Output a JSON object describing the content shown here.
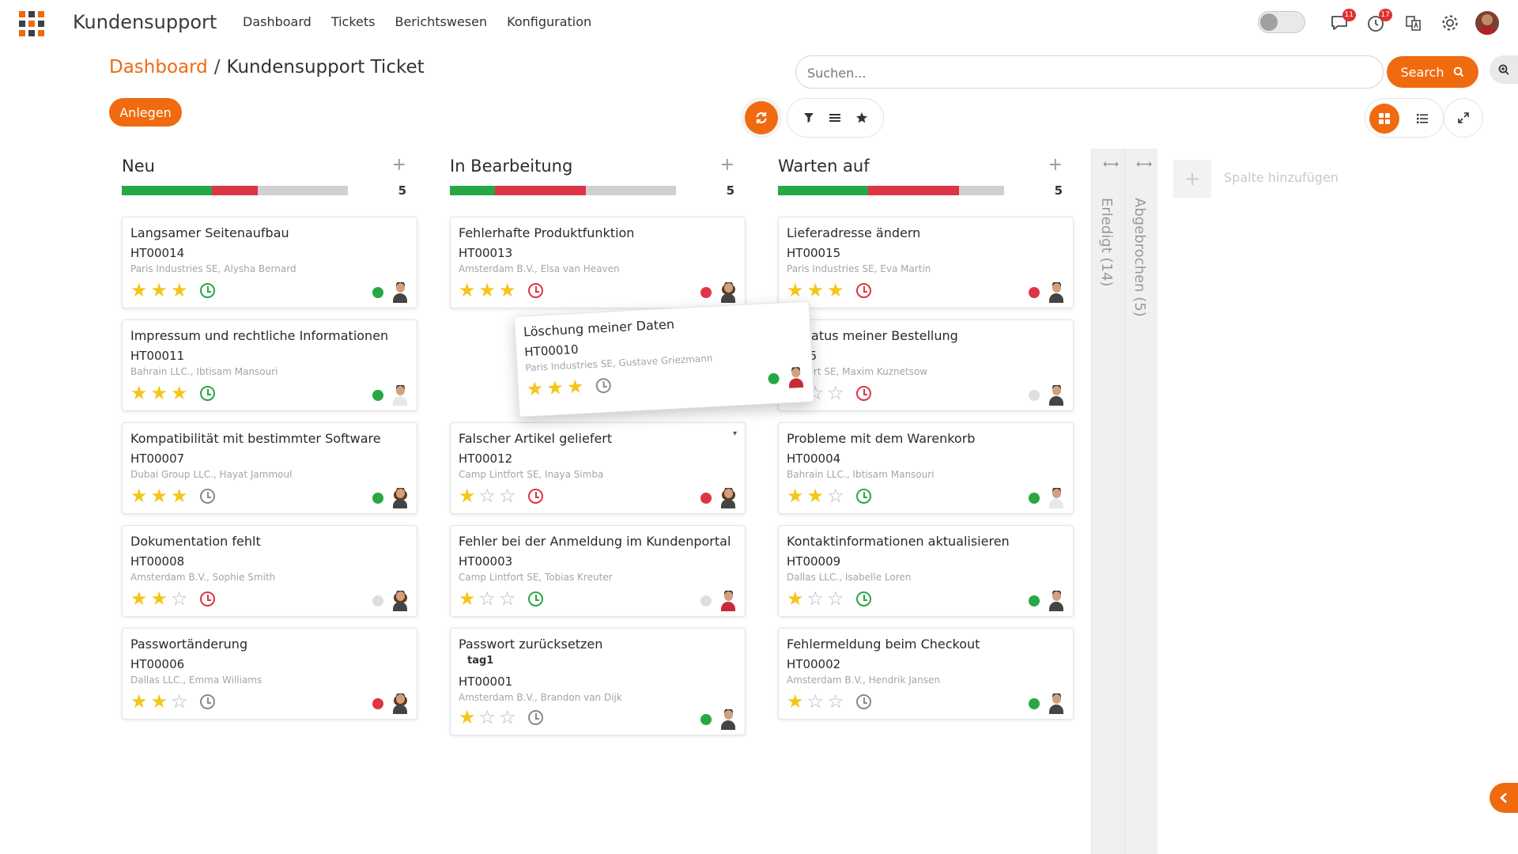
{
  "app": {
    "title": "Kundensupport"
  },
  "menu": [
    "Dashboard",
    "Tickets",
    "Berichtswesen",
    "Konfiguration"
  ],
  "notifications": {
    "messages": "11",
    "activities": "17"
  },
  "breadcrumb": {
    "parent": "Dashboard",
    "current": "Kundensupport Ticket"
  },
  "search": {
    "placeholder": "Suchen...",
    "button": "Search"
  },
  "actions": {
    "create": "Anlegen"
  },
  "colors": {
    "accent": "#f06a0f",
    "green": "#28a745",
    "red": "#dc3545"
  },
  "columns": [
    {
      "title": "Neu",
      "count": "5",
      "progress": {
        "green": 0.4,
        "red": 0.2
      },
      "cards": [
        {
          "title": "Langsamer Seitenaufbau",
          "id": "HT00014",
          "customer": "Paris Industries SE, Alysha Bernard",
          "stars": 3,
          "clock": "green",
          "dot": "green"
        },
        {
          "title": "Impressum und rechtliche Informationen",
          "id": "HT00011",
          "customer": "Bahrain LLC., Ibtisam Mansouri",
          "stars": 3,
          "clock": "green",
          "dot": "green"
        },
        {
          "title": "Kompatibilität mit bestimmter Software",
          "id": "HT00007",
          "customer": "Dubai Group LLC., Hayat Jammoul",
          "stars": 3,
          "clock": "grey",
          "dot": "green"
        },
        {
          "title": "Dokumentation fehlt",
          "id": "HT00008",
          "customer": "Amsterdam B.V., Sophie Smith",
          "stars": 2,
          "clock": "red",
          "dot": "grey"
        },
        {
          "title": "Passwortänderung",
          "id": "HT00006",
          "customer": "Dallas LLC., Emma Williams",
          "stars": 2,
          "clock": "grey",
          "dot": "red"
        }
      ]
    },
    {
      "title": "In Bearbeitung",
      "count": "5",
      "progress": {
        "green": 0.2,
        "red": 0.4
      },
      "cards": [
        {
          "title": "Fehlerhafte Produktfunktion",
          "id": "HT00013",
          "customer": "Amsterdam B.V., Elsa van Heaven",
          "stars": 3,
          "clock": "red",
          "dot": "red"
        },
        {
          "title": "Falscher Artikel geliefert",
          "id": "HT00012",
          "customer": "Camp Lintfort SE, Inaya Simba",
          "stars": 1,
          "clock": "red",
          "dot": "red"
        },
        {
          "title": "Fehler bei der Anmeldung im Kundenportal",
          "id": "HT00003",
          "customer": "Camp Lintfort SE, Tobias Kreuter",
          "stars": 1,
          "clock": "green",
          "dot": "grey"
        },
        {
          "title": "Passwort zurücksetzen",
          "tag": "tag1",
          "id": "HT00001",
          "customer": "Amsterdam B.V., Brandon van Dijk",
          "stars": 1,
          "clock": "grey",
          "dot": "green"
        }
      ]
    },
    {
      "title": "Warten auf",
      "count": "5",
      "progress": {
        "green": 0.4,
        "red": 0.4
      },
      "cards": [
        {
          "title": "Lieferadresse ändern",
          "id": "HT00015",
          "customer": "Paris Industries SE, Eva Martin",
          "stars": 3,
          "clock": "red",
          "dot": "red"
        },
        {
          "title": "erstatus meiner Bestellung",
          "id": "0005",
          "customer": "Lintfort SE, Maxim Kuznetsow",
          "stars": 1,
          "clock": "red",
          "dot": "grey"
        },
        {
          "title": "Probleme mit dem Warenkorb",
          "id": "HT00004",
          "customer": "Bahrain LLC., Ibtisam Mansouri",
          "stars": 2,
          "clock": "green",
          "dot": "green"
        },
        {
          "title": "Kontaktinformationen aktualisieren",
          "id": "HT00009",
          "customer": "Dallas LLC., Isabelle Loren",
          "stars": 1,
          "clock": "green",
          "dot": "green"
        },
        {
          "title": "Fehlermeldung beim Checkout",
          "id": "HT00002",
          "customer": "Amsterdam B.V., Hendrik Jansen",
          "stars": 1,
          "clock": "grey",
          "dot": "green"
        }
      ]
    }
  ],
  "dragging_card": {
    "title": "Löschung meiner Daten",
    "id": "HT00010",
    "customer": "Paris Industries SE, Gustave Griezmann",
    "stars": 3,
    "clock": "grey",
    "dot": "green"
  },
  "folded_columns": [
    "Erledigt (14)",
    "Abgebrochen (5)"
  ],
  "add_column": {
    "label": "Spalte hinzufügen",
    "icon": "+"
  }
}
